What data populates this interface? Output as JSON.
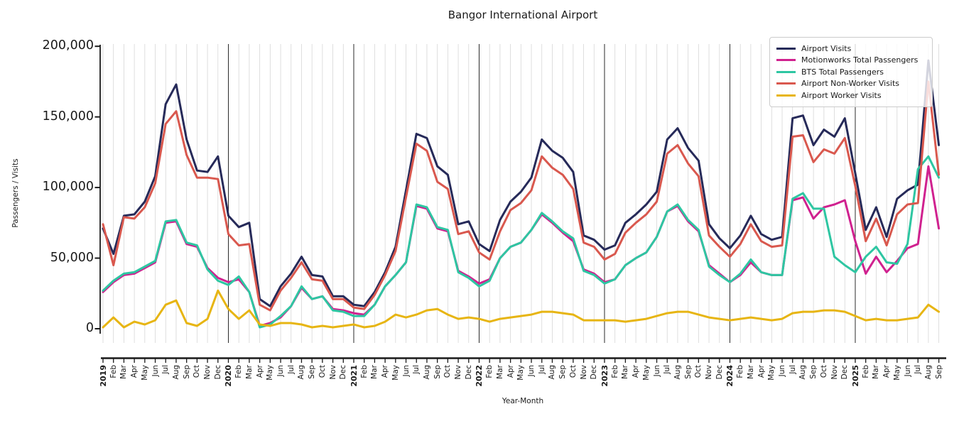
{
  "chart_data": {
    "type": "line",
    "title": "Bangor International Airport",
    "xlabel": "Year-Month",
    "ylabel": "Passengers / Visits",
    "ylim": [
      0,
      200000
    ],
    "grid": "vertical gridline each month; dark vertical line each January",
    "legend_position": "upper right",
    "ytick_values": [
      0,
      50000,
      100000,
      150000,
      200000
    ],
    "ytick_labels": [
      "0",
      "50,000",
      "100,000",
      "150,000",
      "200,000"
    ],
    "x_tick_labels": [
      "2019",
      "Feb",
      "Mar",
      "Apr",
      "May",
      "Jun",
      "Jul",
      "Aug",
      "Sep",
      "Oct",
      "Nov",
      "Dec",
      "2020",
      "Feb",
      "Mar",
      "Apr",
      "May",
      "Jun",
      "Jul",
      "Aug",
      "Sep",
      "Oct",
      "Nov",
      "Dec",
      "2021",
      "Feb",
      "Mar",
      "Apr",
      "May",
      "Jun",
      "Jul",
      "Aug",
      "Sep",
      "Oct",
      "Nov",
      "Dec",
      "2022",
      "Feb",
      "Mar",
      "Apr",
      "May",
      "Jun",
      "Jul",
      "Aug",
      "Sep",
      "Oct",
      "Nov",
      "Dec",
      "2023",
      "Feb",
      "Mar",
      "Apr",
      "May",
      "Jun",
      "Jul",
      "Aug",
      "Sep",
      "Oct",
      "Nov",
      "Dec",
      "2024",
      "Feb",
      "Mar",
      "Apr",
      "May",
      "Jun",
      "Jul",
      "Aug",
      "Sep",
      "Oct",
      "Nov",
      "Dec",
      "2025",
      "Feb",
      "Mar",
      "Apr",
      "May",
      "Jun",
      "Jul",
      "Aug",
      "Sep"
    ],
    "series": [
      {
        "name": "Airport Visits",
        "color": "#262a59",
        "values": [
          71000,
          53000,
          80000,
          81000,
          90000,
          108000,
          159000,
          173000,
          134000,
          112000,
          111000,
          122000,
          80000,
          72000,
          75000,
          21000,
          16000,
          30000,
          39000,
          51000,
          38000,
          37000,
          23000,
          23000,
          17000,
          16000,
          26000,
          40000,
          58000,
          98000,
          138000,
          135000,
          115000,
          109000,
          74000,
          76000,
          60000,
          55000,
          77000,
          90000,
          97000,
          107000,
          134000,
          126000,
          121000,
          111000,
          66000,
          63000,
          56000,
          59000,
          75000,
          81000,
          88000,
          97000,
          134000,
          142000,
          128000,
          119000,
          74000,
          64000,
          57000,
          66000,
          80000,
          67000,
          63000,
          65000,
          149000,
          151000,
          130000,
          141000,
          136000,
          149000,
          110000,
          70000,
          86000,
          65000,
          92000,
          98000,
          102000,
          190000,
          130000
        ]
      },
      {
        "name": "Motionworks Total Passengers",
        "color": "#d0218f",
        "values": [
          26000,
          33000,
          38000,
          39000,
          43000,
          47000,
          75000,
          76000,
          60000,
          58000,
          43000,
          36000,
          33000,
          35000,
          26000,
          2000,
          4000,
          8000,
          16000,
          29000,
          21000,
          23000,
          14000,
          13000,
          11000,
          10000,
          17000,
          30000,
          38000,
          47000,
          87000,
          85000,
          71000,
          69000,
          41000,
          37000,
          32000,
          35000,
          50000,
          58000,
          61000,
          70000,
          81000,
          75000,
          68000,
          62000,
          42000,
          39000,
          33000,
          35000,
          45000,
          50000,
          54000,
          65000,
          83000,
          87000,
          76000,
          69000,
          45000,
          39000,
          33000,
          38000,
          47000,
          40000,
          38000,
          38000,
          91000,
          93000,
          78000,
          86000,
          88000,
          91000,
          62000,
          39000,
          51000,
          40000,
          48000,
          57000,
          60000,
          115000,
          71000
        ]
      },
      {
        "name": "BTS Total Passengers",
        "color": "#2ec6a2",
        "values": [
          27000,
          34000,
          39000,
          40000,
          44000,
          48000,
          76000,
          77000,
          61000,
          59000,
          42000,
          34000,
          31000,
          37000,
          26000,
          1000,
          3000,
          9000,
          16000,
          30000,
          21000,
          23000,
          13000,
          12000,
          9000,
          9000,
          17000,
          30000,
          38000,
          47000,
          88000,
          86000,
          72000,
          70000,
          40000,
          36000,
          30000,
          34000,
          50000,
          58000,
          61000,
          70000,
          82000,
          76000,
          69000,
          64000,
          41000,
          38000,
          32000,
          35000,
          45000,
          50000,
          54000,
          65000,
          83000,
          88000,
          77000,
          70000,
          44000,
          38000,
          33000,
          39000,
          49000,
          40000,
          38000,
          38000,
          92000,
          96000,
          85000,
          85000,
          51000,
          45000,
          40000,
          51000,
          58000,
          47000,
          46000,
          60000,
          113000,
          122000,
          107000
        ]
      },
      {
        "name": "Airport Non-Worker Visits",
        "color": "#d9584e",
        "values": [
          74000,
          45000,
          79000,
          78000,
          86000,
          103000,
          145000,
          154000,
          123000,
          107000,
          107000,
          106000,
          67000,
          59000,
          60000,
          17000,
          13000,
          27000,
          36000,
          47000,
          35000,
          34000,
          21000,
          21000,
          15000,
          14000,
          24000,
          38000,
          55000,
          93000,
          131000,
          126000,
          104000,
          99000,
          67000,
          69000,
          54000,
          49000,
          69000,
          84000,
          89000,
          98000,
          122000,
          114000,
          109000,
          99000,
          61000,
          58000,
          49000,
          53000,
          68000,
          75000,
          81000,
          90000,
          124000,
          130000,
          117000,
          108000,
          66000,
          58000,
          51000,
          60000,
          74000,
          62000,
          58000,
          59000,
          136000,
          137000,
          118000,
          127000,
          124000,
          135000,
          101000,
          62000,
          78000,
          59000,
          81000,
          88000,
          89000,
          175000,
          109000
        ]
      },
      {
        "name": "Airport Worker Visits",
        "color": "#e7b513",
        "values": [
          1000,
          8000,
          1000,
          5000,
          3000,
          6000,
          17000,
          20000,
          4000,
          2000,
          7000,
          27000,
          14000,
          7000,
          13000,
          3000,
          2000,
          4000,
          4000,
          3000,
          1000,
          2000,
          1000,
          2000,
          3000,
          1000,
          2000,
          5000,
          10000,
          8000,
          10000,
          13000,
          14000,
          10000,
          7000,
          8000,
          7000,
          5000,
          7000,
          8000,
          9000,
          10000,
          12000,
          12000,
          11000,
          10000,
          6000,
          6000,
          6000,
          6000,
          5000,
          6000,
          7000,
          9000,
          11000,
          12000,
          12000,
          10000,
          8000,
          7000,
          6000,
          7000,
          8000,
          7000,
          6000,
          7000,
          11000,
          12000,
          12000,
          13000,
          13000,
          12000,
          9000,
          6000,
          7000,
          6000,
          6000,
          7000,
          8000,
          17000,
          12000
        ]
      }
    ]
  }
}
